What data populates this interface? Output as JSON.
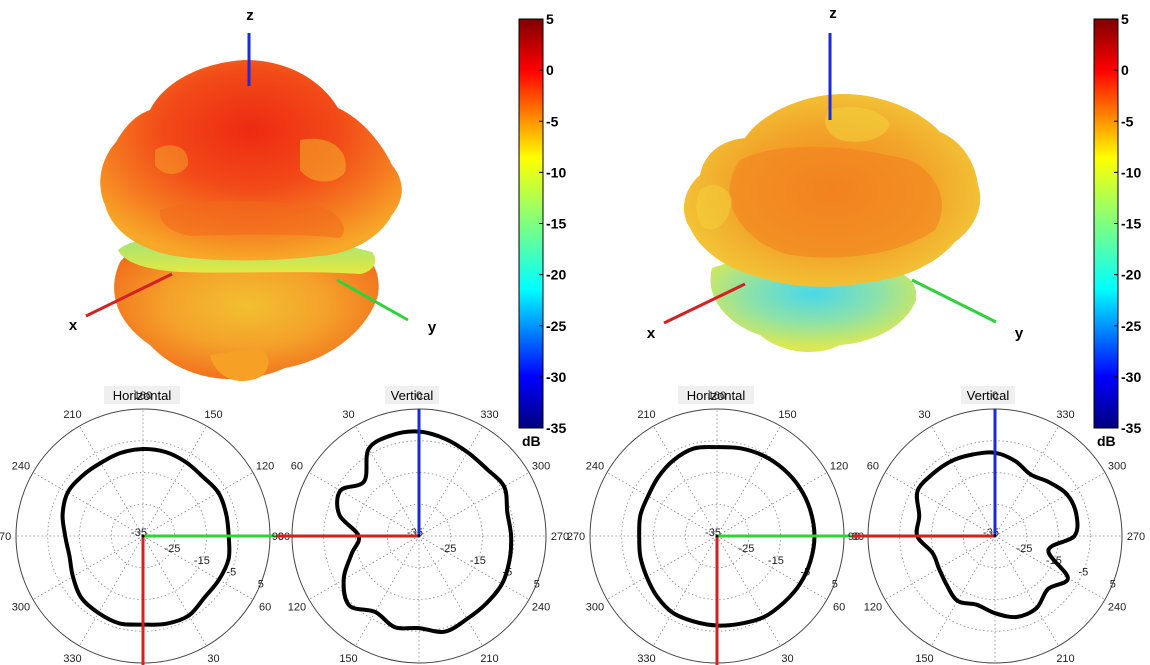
{
  "chart_data": {
    "type": "polar",
    "colorbar": {
      "ticks": [
        "5",
        "0",
        "-5",
        "-10",
        "-15",
        "-20",
        "-25",
        "-30",
        "-35"
      ],
      "values": [
        5,
        0,
        -5,
        -10,
        -15,
        -20,
        -25,
        -30,
        -35
      ],
      "unit": "dB",
      "range": [
        -35,
        5
      ],
      "colormap": "jet"
    },
    "panels": [
      {
        "axes3d": {
          "z": "z",
          "x": "x",
          "y": "y"
        },
        "horizontal": {
          "title": "Horizontal",
          "angle_labels": [
            "180",
            "150",
            "120",
            "90",
            "60",
            "30",
            "330",
            "300",
            "270",
            "240",
            "210"
          ],
          "radial_labels": [
            "-35",
            "-25",
            "-15",
            "-5",
            "5"
          ],
          "axis_marks": {
            "x": "red",
            "y": "green"
          },
          "series": {
            "angles_deg": [
              0,
              15,
              30,
              45,
              60,
              75,
              90,
              105,
              120,
              135,
              150,
              165,
              180,
              195,
              210,
              225,
              240,
              255,
              270,
              285,
              300,
              315,
              330,
              345
            ],
            "values_db": [
              -7.6,
              -7.9,
              -8.4,
              -8.1,
              -7.6,
              -8.8,
              -10.5,
              -11.0,
              -9.5,
              -7.5,
              -7.0,
              -6.5,
              -7.1,
              -6.4,
              -6.1,
              -7.6,
              -7.4,
              -7.1,
              -8.0,
              -7.9,
              -7.6,
              -8.5,
              -8.1,
              -7.6
            ]
          }
        },
        "vertical": {
          "title": "Vertical",
          "angle_labels": [
            "0",
            "30",
            "60",
            "90",
            "120",
            "150",
            "180",
            "210",
            "240",
            "270",
            "300",
            "330"
          ],
          "radial_labels": [
            "-35",
            "-25",
            "-15",
            "-5",
            "5"
          ],
          "axis_marks": {
            "z": "blue",
            "x": "red"
          },
          "series": {
            "angles_deg": [
              0,
              15,
              30,
              45,
              60,
              75,
              90,
              105,
              120,
              135,
              150,
              165,
              180,
              195,
              210,
              225,
              240,
              255,
              270,
              285,
              300,
              315,
              330,
              345
            ],
            "values_db": [
              -2.1,
              -3.3,
              -4.5,
              -5.0,
              -4.0,
              -6.2,
              -6.0,
              -5.5,
              -4.8,
              -5.0,
              -4.8,
              -3.8,
              -6.0,
              -5.3,
              -7.4,
              -4.0,
              -7.6,
              -13.0,
              -16.0,
              -9.0,
              -6.4,
              -10.6,
              -3.3,
              -2.1
            ]
          }
        }
      },
      {
        "axes3d": {
          "z": "z",
          "x": "x",
          "y": "y"
        },
        "horizontal": {
          "title": "Horizontal",
          "angle_labels": [
            "180",
            "150",
            "120",
            "90",
            "60",
            "30",
            "330",
            "300",
            "270",
            "240",
            "210"
          ],
          "radial_labels": [
            "-35",
            "-25",
            "-15",
            "-5",
            "5"
          ],
          "axis_marks": {
            "x": "red",
            "y": "green"
          },
          "series": {
            "angles_deg": [
              0,
              15,
              30,
              45,
              60,
              75,
              90,
              105,
              120,
              135,
              150,
              165,
              180,
              195,
              210,
              225,
              240,
              255,
              270,
              285,
              300,
              315,
              330,
              345
            ],
            "values_db": [
              -7.0,
              -6.5,
              -7.5,
              -8.8,
              -9.9,
              -10.0,
              -10.5,
              -10.0,
              -9.4,
              -8.2,
              -7.1,
              -7.1,
              -6.8,
              -6.4,
              -5.5,
              -5.3,
              -4.8,
              -4.5,
              -4.3,
              -4.5,
              -4.8,
              -5.3,
              -5.8,
              -6.4
            ]
          }
        },
        "vertical": {
          "title": "Vertical",
          "angle_labels": [
            "0",
            "30",
            "60",
            "90",
            "120",
            "150",
            "180",
            "210",
            "240",
            "270",
            "300",
            "330"
          ],
          "radial_labels": [
            "-35",
            "-25",
            "-15",
            "-5",
            "5"
          ],
          "axis_marks": {
            "z": "blue",
            "x": "red"
          },
          "series": {
            "angles_deg": [
              0,
              15,
              30,
              45,
              60,
              75,
              90,
              105,
              120,
              135,
              150,
              165,
              180,
              195,
              210,
              225,
              240,
              255,
              270,
              285,
              300,
              315,
              330,
              345
            ],
            "values_db": [
              -8.8,
              -10.5,
              -12.6,
              -11.0,
              -8.8,
              -8.5,
              -10.0,
              -17.6,
              -8.5,
              -11.4,
              -8.8,
              -8.6,
              -10.7,
              -12.6,
              -11.4,
              -13.4,
              -14.6,
              -14.6,
              -10.5,
              -10.3,
              -6.8,
              -7.3,
              -7.7,
              -8.4
            ]
          }
        }
      }
    ]
  }
}
